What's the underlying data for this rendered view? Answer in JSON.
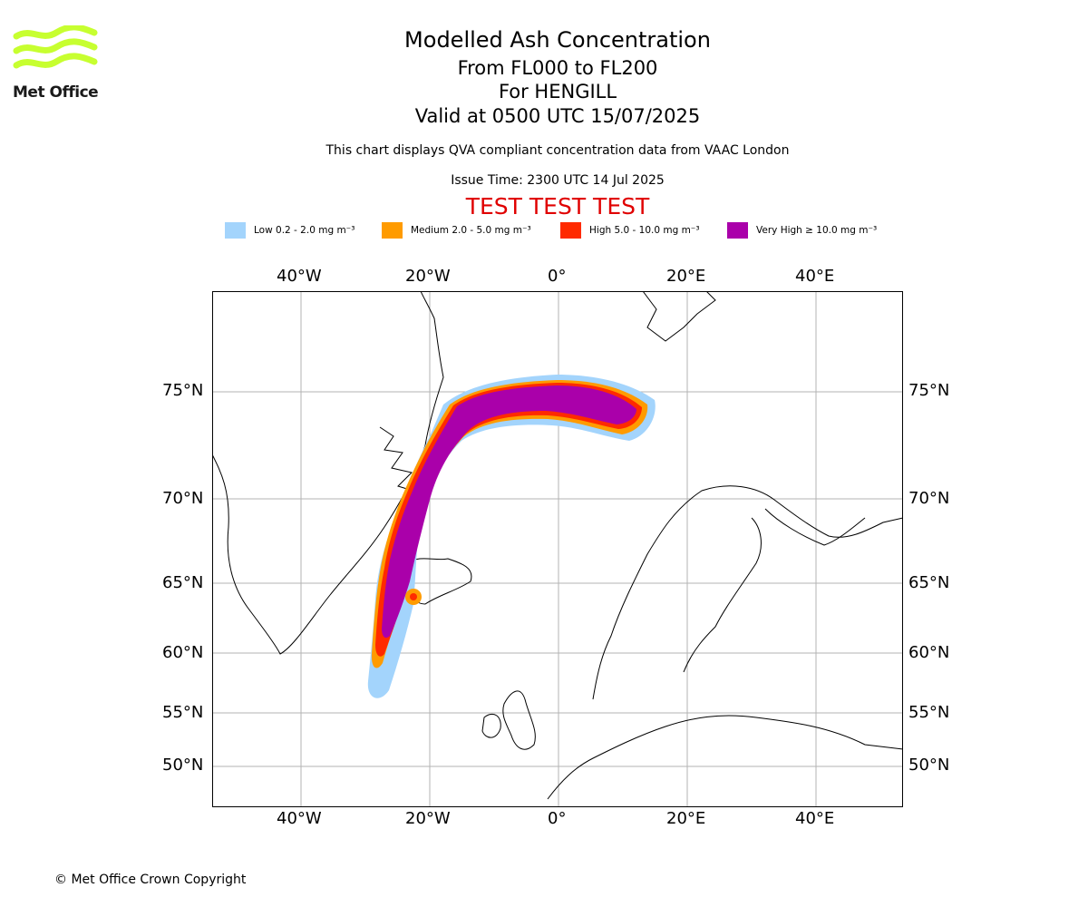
{
  "header": {
    "title": "Modelled Ash Concentration",
    "subtitle_levels": "From FL000 to FL200",
    "subtitle_volcano": "For HENGILL",
    "subtitle_valid": "Valid at 0500 UTC 15/07/2025",
    "description": "This chart displays QVA compliant concentration data from VAAC London",
    "issue_time": "Issue Time: 2300 UTC 14 Jul 2025",
    "test_banner": "TEST TEST TEST"
  },
  "logo": {
    "text": "Met Office",
    "color": "#c7ff30"
  },
  "legend": [
    {
      "label": "Low 0.2 - 2.0 mg m⁻³",
      "color": "#a3d4fc"
    },
    {
      "label": "Medium 2.0 - 5.0 mg m⁻³",
      "color": "#ff9b00"
    },
    {
      "label": "High 5.0 - 10.0 mg m⁻³",
      "color": "#ff2a00"
    },
    {
      "label": "Very High ≥ 10.0 mg m⁻³",
      "color": "#aa00aa"
    }
  ],
  "map": {
    "lon_labels": [
      "40°W",
      "20°W",
      "0°",
      "20°E",
      "40°E"
    ],
    "lat_labels": [
      "75°N",
      "70°N",
      "65°N",
      "60°N",
      "55°N",
      "50°N"
    ]
  },
  "footer": {
    "copyright": "© Met Office Crown Copyright"
  }
}
